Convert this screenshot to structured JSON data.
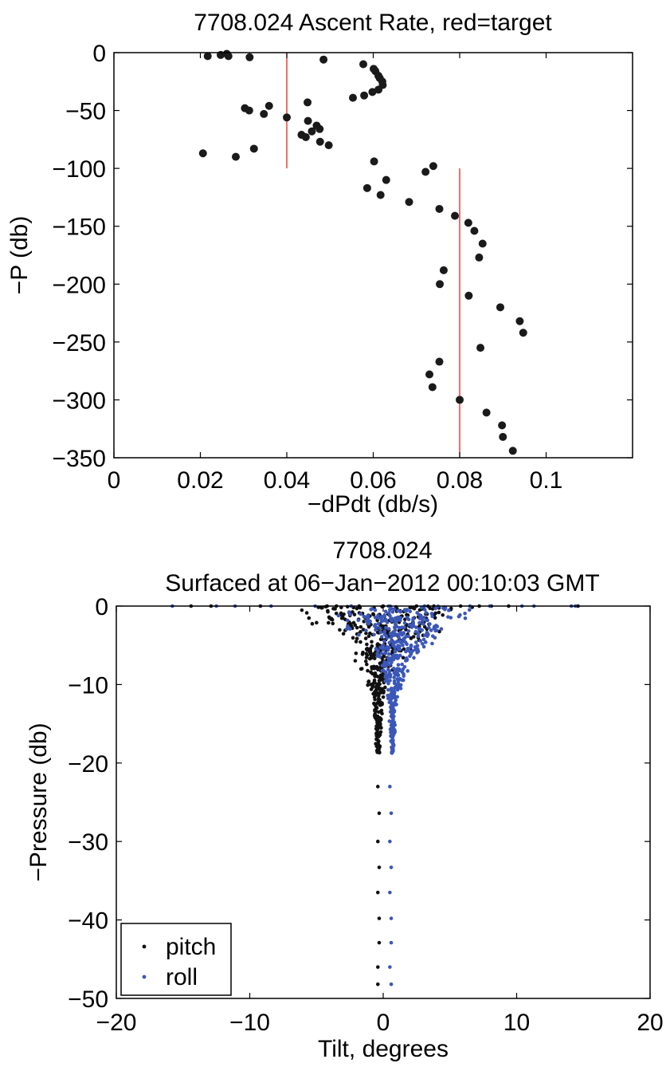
{
  "chart_data": [
    {
      "type": "scatter",
      "title": "7708.024  Ascent Rate, red=target",
      "xlabel": "−dPdt (db/s)",
      "ylabel": "−P (db)",
      "xlim": [
        0,
        0.12
      ],
      "ylim": [
        -350,
        0
      ],
      "xticks": [
        0,
        0.02,
        0.04,
        0.06,
        0.08,
        0.1
      ],
      "xtick_labels": [
        "0",
        "0.02",
        "0.04",
        "0.06",
        "0.08",
        "0.1"
      ],
      "yticks": [
        0,
        -50,
        -100,
        -150,
        -200,
        -250,
        -300,
        -350
      ],
      "ytick_labels": [
        "0",
        "−50",
        "−100",
        "−150",
        "−200",
        "−250",
        "−300",
        "−350"
      ],
      "grid": false,
      "colors": {
        "points": "#1a1a1a",
        "target": "#e8231e"
      },
      "targets": [
        {
          "x": 0.04,
          "y_range": [
            -100,
            0
          ]
        },
        {
          "x": 0.08,
          "y_range": [
            -350,
            -100
          ]
        }
      ],
      "series": [
        {
          "points": [
            [
              0.0217,
              -3
            ],
            [
              0.0247,
              -2
            ],
            [
              0.0261,
              -1
            ],
            [
              0.0265,
              -3
            ],
            [
              0.0314,
              -4
            ],
            [
              0.0485,
              -6
            ],
            [
              0.0577,
              -10
            ],
            [
              0.0601,
              -14
            ],
            [
              0.0605,
              -16
            ],
            [
              0.0612,
              -20
            ],
            [
              0.0615,
              -22
            ],
            [
              0.0621,
              -25
            ],
            [
              0.0622,
              -28
            ],
            [
              0.0612,
              -32
            ],
            [
              0.0598,
              -34
            ],
            [
              0.0579,
              -37
            ],
            [
              0.0553,
              -39
            ],
            [
              0.0448,
              -43
            ],
            [
              0.0359,
              -46
            ],
            [
              0.0303,
              -48
            ],
            [
              0.0313,
              -50
            ],
            [
              0.0347,
              -53
            ],
            [
              0.04,
              -56
            ],
            [
              0.0449,
              -59
            ],
            [
              0.0469,
              -63
            ],
            [
              0.0476,
              -66
            ],
            [
              0.0458,
              -68
            ],
            [
              0.0434,
              -71
            ],
            [
              0.0444,
              -73
            ],
            [
              0.0477,
              -77
            ],
            [
              0.0497,
              -80
            ],
            [
              0.0324,
              -83
            ],
            [
              0.0206,
              -87
            ],
            [
              0.0282,
              -90
            ],
            [
              0.0602,
              -94
            ],
            [
              0.0739,
              -98
            ],
            [
              0.0721,
              -103
            ],
            [
              0.063,
              -110
            ],
            [
              0.0586,
              -117
            ],
            [
              0.0617,
              -123
            ],
            [
              0.0683,
              -129
            ],
            [
              0.0753,
              -135
            ],
            [
              0.0789,
              -141
            ],
            [
              0.082,
              -147
            ],
            [
              0.0834,
              -154
            ],
            [
              0.0853,
              -165
            ],
            [
              0.0845,
              -177
            ],
            [
              0.0754,
              -200
            ],
            [
              0.0763,
              -188
            ],
            [
              0.0821,
              -210
            ],
            [
              0.0894,
              -220
            ],
            [
              0.0939,
              -232
            ],
            [
              0.0947,
              -242
            ],
            [
              0.0848,
              -255
            ],
            [
              0.0753,
              -267
            ],
            [
              0.073,
              -278
            ],
            [
              0.0737,
              -289
            ],
            [
              0.08,
              -300
            ],
            [
              0.0862,
              -311
            ],
            [
              0.0898,
              -322
            ],
            [
              0.09,
              -332
            ],
            [
              0.0923,
              -344
            ]
          ]
        }
      ]
    },
    {
      "type": "scatter",
      "title_lines": [
        "7708.024",
        "Surfaced at 06−Jan−2012 00:10:03 GMT"
      ],
      "xlabel": "Tilt, degrees",
      "ylabel": "−Pressure (db)",
      "xlim": [
        -20,
        20
      ],
      "ylim": [
        -50,
        0
      ],
      "xticks": [
        -20,
        -10,
        0,
        10,
        20
      ],
      "xtick_labels": [
        "−20",
        "−10",
        "0",
        "10",
        "20"
      ],
      "yticks": [
        0,
        -10,
        -20,
        -30,
        -40,
        -50
      ],
      "ytick_labels": [
        "0",
        "−10",
        "−20",
        "−30",
        "−40",
        "−50"
      ],
      "grid": false,
      "legend": {
        "position": "bottom-left",
        "entries": [
          "pitch",
          "roll"
        ]
      },
      "series": [
        {
          "name": "pitch",
          "color": "#111111"
        },
        {
          "name": "roll",
          "color": "#3b57b8"
        }
      ],
      "surface_points": {
        "pitch": [
          -14.4,
          -12.9,
          -9.2,
          -4.2,
          -3.5,
          -1.8,
          0.0,
          2.5,
          3.8,
          5.8,
          7.2,
          8.1,
          9.4,
          14.6
        ],
        "roll": [
          -15.8,
          -12.5,
          -11.1,
          -8.4,
          -5.1,
          -2.4,
          0.4,
          3.1,
          6.5,
          8.0,
          10.4,
          11.3,
          14.1,
          14.4
        ]
      },
      "deep_profile": {
        "depths": [
          -23,
          -26.4,
          -30,
          -33.3,
          -36.5,
          -39.8,
          -42.9,
          -46,
          -48.2
        ],
        "pitch_x": [
          -0.4,
          -0.3,
          -0.4,
          -0.3,
          -0.4,
          -0.3,
          -0.3,
          -0.4,
          -0.4
        ],
        "roll_x": [
          0.5,
          0.6,
          0.5,
          0.6,
          0.5,
          0.6,
          0.6,
          0.5,
          0.6
        ]
      },
      "cloud": {
        "pitch": [
          {
            "depth_range": [
              -6,
              0
            ],
            "center": 0.0,
            "spread": 7.5
          },
          {
            "depth_range": [
              -11,
              -6
            ],
            "center": -0.4,
            "spread": 2.2
          },
          {
            "depth_range": [
              -18.8,
              -11
            ],
            "center": -0.4,
            "spread": 0.55
          }
        ],
        "roll": [
          {
            "depth_range": [
              -6,
              0
            ],
            "center": 1.2,
            "spread": 7.0
          },
          {
            "depth_range": [
              -11,
              -6
            ],
            "center": 0.9,
            "spread": 1.8
          },
          {
            "depth_range": [
              -18.8,
              -11
            ],
            "center": 0.7,
            "spread": 0.45
          }
        ]
      }
    }
  ]
}
